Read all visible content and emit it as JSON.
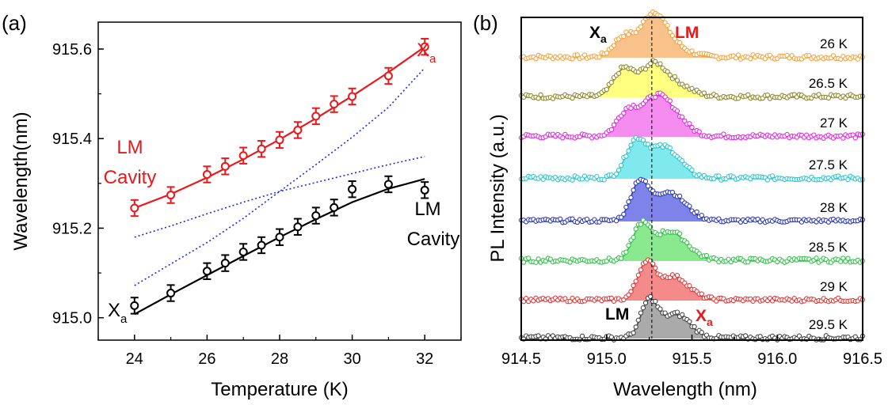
{
  "chart_data": [
    {
      "panel": "(a)",
      "type": "scatter",
      "xlabel": "Temperature (K)",
      "ylabel": "Wavelength(nm)",
      "xlim": [
        23,
        33
      ],
      "ylim": [
        914.95,
        915.66
      ],
      "xticks": [
        "24",
        "26",
        "28",
        "30",
        "32"
      ],
      "yticks": [
        "915.0",
        "915.2",
        "915.4",
        "915.6"
      ],
      "grid": false,
      "series": [
        {
          "color": "#e8191d",
          "marker": "open-circle",
          "error_bars": true,
          "x": [
            24,
            25,
            26,
            26.5,
            27,
            27.5,
            28,
            28.5,
            29,
            29.5,
            30,
            31,
            32
          ],
          "y": [
            915.245,
            915.274,
            915.32,
            915.338,
            915.362,
            915.377,
            915.397,
            915.419,
            915.45,
            915.477,
            915.494,
            915.54,
            915.605
          ],
          "err": 0.018
        },
        {
          "color": "#000000",
          "marker": "open-circle",
          "error_bars": true,
          "x": [
            24,
            25,
            26,
            26.5,
            27,
            27.5,
            28,
            28.5,
            29,
            29.5,
            30,
            31,
            32
          ],
          "y": [
            915.027,
            915.055,
            915.104,
            915.122,
            915.147,
            915.162,
            915.18,
            915.203,
            915.228,
            915.246,
            915.287,
            915.298,
            915.285
          ],
          "err": 0.018
        }
      ],
      "fit_lines": [
        {
          "color": "#e8191d",
          "style": "solid",
          "x": [
            24,
            25,
            26,
            27,
            28,
            29,
            30,
            31,
            32
          ],
          "y": [
            915.245,
            915.276,
            915.313,
            915.354,
            915.398,
            915.445,
            915.495,
            915.548,
            915.605
          ]
        },
        {
          "color": "#000000",
          "style": "solid",
          "x": [
            24,
            25,
            26,
            27,
            28,
            29,
            30,
            31,
            32
          ],
          "y": [
            915.008,
            915.052,
            915.095,
            915.138,
            915.18,
            915.22,
            915.258,
            915.288,
            915.31
          ]
        },
        {
          "color": "#1f2bd6",
          "style": "dotted",
          "x": [
            24,
            25,
            26,
            27,
            28,
            29,
            30,
            31,
            32
          ],
          "y": [
            915.18,
            915.205,
            915.232,
            915.258,
            915.282,
            915.302,
            915.322,
            915.342,
            915.36
          ]
        },
        {
          "color": "#1f2bd6",
          "style": "dotted",
          "x": [
            24,
            25,
            26,
            27,
            28,
            29,
            30,
            31,
            32
          ],
          "y": [
            915.072,
            915.12,
            915.168,
            915.222,
            915.282,
            915.342,
            915.403,
            915.47,
            915.558
          ]
        }
      ],
      "annotations": [
        {
          "id": "xa_top",
          "text": "X",
          "sub": "a",
          "color": "#e8191d"
        },
        {
          "id": "lm_red",
          "text": "LM",
          "color": "#e8191d"
        },
        {
          "id": "cavity_red",
          "text": "Cavity",
          "color": "#e8191d"
        },
        {
          "id": "lm_black",
          "text": "LM",
          "color": "#000000"
        },
        {
          "id": "cavity_black",
          "text": "Cavity",
          "color": "#000000"
        },
        {
          "id": "xa_bottom",
          "text": "X",
          "sub": "a",
          "color": "#000000"
        }
      ]
    },
    {
      "panel": "(b)",
      "type": "area",
      "xlabel": "Wavelength (nm)",
      "ylabel": "PL Intensity (a.u.)",
      "xlim": [
        914.5,
        916.5
      ],
      "xticks": [
        "914.5",
        "915.0",
        "915.5",
        "916.0",
        "916.5"
      ],
      "dashed_line_x": 915.265,
      "series": [
        {
          "name": "26 K",
          "color": "#f5a33d",
          "fill": "#f8c28a",
          "peaks": [
            [
              915.1,
              0.55,
              0.06
            ],
            [
              915.27,
              1.0,
              0.07
            ],
            [
              915.36,
              0.35,
              0.1
            ]
          ],
          "noise": 0.06
        },
        {
          "name": "26.5 K",
          "color": "#8c8a2a",
          "fill": "#ffff80",
          "peaks": [
            [
              915.1,
              0.75,
              0.06
            ],
            [
              915.27,
              0.8,
              0.07
            ],
            [
              915.4,
              0.35,
              0.09
            ]
          ],
          "noise": 0.06
        },
        {
          "name": "27 K",
          "color": "#e22be2",
          "fill": "#f58cf0",
          "peaks": [
            [
              915.12,
              0.65,
              0.06
            ],
            [
              915.28,
              0.95,
              0.08
            ],
            [
              915.4,
              0.45,
              0.08
            ]
          ],
          "noise": 0.06
        },
        {
          "name": "27.5 K",
          "color": "#2cc7cf",
          "fill": "#7fe9ee",
          "peaks": [
            [
              915.17,
              0.95,
              0.06
            ],
            [
              915.34,
              0.85,
              0.09
            ]
          ],
          "noise": 0.06
        },
        {
          "name": "28 K",
          "color": "#2f3bb5",
          "fill": "#7e83e9",
          "peaks": [
            [
              915.19,
              0.95,
              0.05
            ],
            [
              915.36,
              0.8,
              0.1
            ]
          ],
          "noise": 0.05
        },
        {
          "name": "28.5 K",
          "color": "#33c24a",
          "fill": "#8ae88e",
          "peaks": [
            [
              915.2,
              0.85,
              0.05
            ],
            [
              915.37,
              0.8,
              0.1
            ]
          ],
          "noise": 0.06
        },
        {
          "name": "29 K",
          "color": "#e03a3a",
          "fill": "#f48a8a",
          "peaks": [
            [
              915.23,
              0.95,
              0.05
            ],
            [
              915.39,
              0.65,
              0.09
            ]
          ],
          "noise": 0.05
        },
        {
          "name": "29.5 K",
          "color": "#444444",
          "fill": "#aaaaaa",
          "peaks": [
            [
              915.25,
              1.0,
              0.05
            ],
            [
              915.41,
              0.65,
              0.08
            ]
          ],
          "noise": 0.06
        }
      ],
      "annotations": [
        {
          "id": "xa_top",
          "text": "X",
          "sub": "a",
          "color": "#000000"
        },
        {
          "id": "lm_top",
          "text": "LM",
          "color": "#e8191d"
        },
        {
          "id": "lm_bottom",
          "text": "LM",
          "color": "#000000"
        },
        {
          "id": "xa_bottom",
          "text": "X",
          "sub": "a",
          "color": "#e8191d"
        }
      ]
    }
  ]
}
